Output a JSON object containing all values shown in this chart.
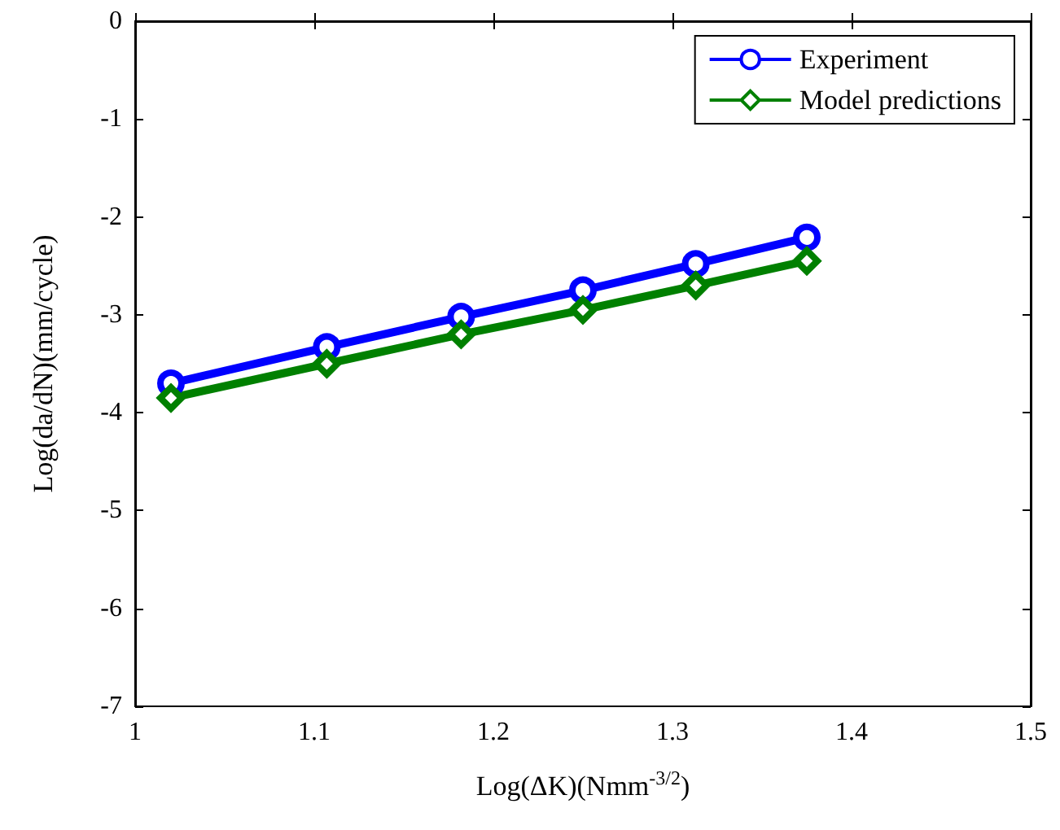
{
  "chart_data": {
    "type": "line",
    "xlabel": "Log(ΔK)(Nmm$^{-3/2}$)",
    "ylabel": "Log(da/dN)(mm/cycle)",
    "xlim": [
      1,
      1.5
    ],
    "xticks": [
      1,
      1.1,
      1.2,
      1.3,
      1.4,
      1.5
    ],
    "ylim": [
      -7,
      0
    ],
    "yticks": [
      -7,
      -6,
      -5,
      -4,
      -3,
      -2,
      -1,
      0
    ],
    "grid": false,
    "legend": "top right",
    "marker": "circle",
    "line_style": "solid",
    "series": [
      {
        "name": "Experiment",
        "color": "#0000ff",
        "x": [
          1.02,
          1.107,
          1.182,
          1.25,
          1.313,
          1.375
        ],
        "values": [
          -3.7,
          -3.33,
          -3.02,
          -2.75,
          -2.48,
          -2.21
        ]
      },
      {
        "name": "Model predictions",
        "color": "#008000",
        "marker": "diamond",
        "x": [
          1.02,
          1.107,
          1.182,
          1.25,
          1.313,
          1.375
        ],
        "values": [
          -3.85,
          -3.5,
          -3.2,
          -2.95,
          -2.7,
          -2.45
        ]
      }
    ]
  }
}
